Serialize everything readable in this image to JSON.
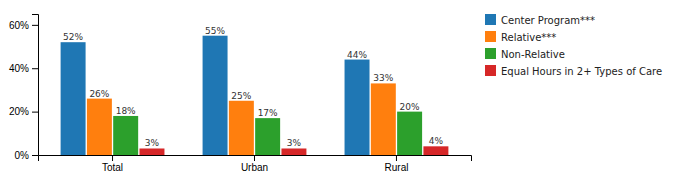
{
  "chart_data": {
    "type": "bar",
    "categories": [
      "Total",
      "Urban",
      "Rural"
    ],
    "series": [
      {
        "name": "Center Program***",
        "values": [
          52,
          55,
          44
        ],
        "value_labels": [
          "52%",
          "55%",
          "44%"
        ]
      },
      {
        "name": "Relative***",
        "values": [
          26,
          25,
          33
        ],
        "value_labels": [
          "26%",
          "25%",
          "33%"
        ]
      },
      {
        "name": "Non-Relative",
        "values": [
          18,
          17,
          20
        ],
        "value_labels": [
          "18%",
          "17%",
          "20%"
        ]
      },
      {
        "name": "Equal Hours in 2+ Types of Care",
        "values": [
          3,
          3,
          4
        ],
        "value_labels": [
          "3%",
          "3%",
          "4%"
        ]
      }
    ],
    "ylim": [
      0,
      65
    ],
    "yticks": [
      {
        "value": 0,
        "label": "0%"
      },
      {
        "value": 20,
        "label": "20%"
      },
      {
        "value": 40,
        "label": "40%"
      },
      {
        "value": 60,
        "label": "60%"
      }
    ],
    "grid": false,
    "legend": "right",
    "data_labels": true
  }
}
